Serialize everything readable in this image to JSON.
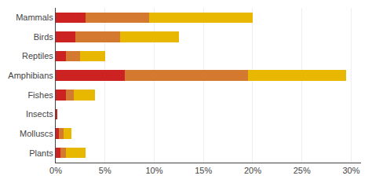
{
  "chart_data": {
    "type": "bar",
    "orientation": "horizontal",
    "stacked": true,
    "categories": [
      "Mammals",
      "Birds",
      "Reptiles",
      "Amphibians",
      "Fishes",
      "Insects",
      "Molluscs",
      "Plants"
    ],
    "series": [
      {
        "color": "#cc2222",
        "values": [
          3.0,
          2.0,
          1.0,
          7.0,
          1.0,
          0.1,
          0.3,
          0.5
        ]
      },
      {
        "color": "#d47a30",
        "values": [
          6.5,
          4.5,
          1.5,
          12.5,
          0.8,
          0.0,
          0.5,
          0.5
        ]
      },
      {
        "color": "#e8b800",
        "values": [
          10.5,
          6.0,
          2.5,
          10.0,
          2.2,
          0.0,
          0.8,
          2.0
        ]
      }
    ],
    "xlim": [
      0,
      31
    ],
    "xticks": [
      {
        "value": 0,
        "label": "0%"
      },
      {
        "value": 5,
        "label": "5%"
      },
      {
        "value": 10,
        "label": "10%"
      },
      {
        "value": 15,
        "label": "15%"
      },
      {
        "value": 20,
        "label": "20%"
      },
      {
        "value": 25,
        "label": "25%"
      },
      {
        "value": 30,
        "label": "30%"
      }
    ],
    "grid": true
  }
}
